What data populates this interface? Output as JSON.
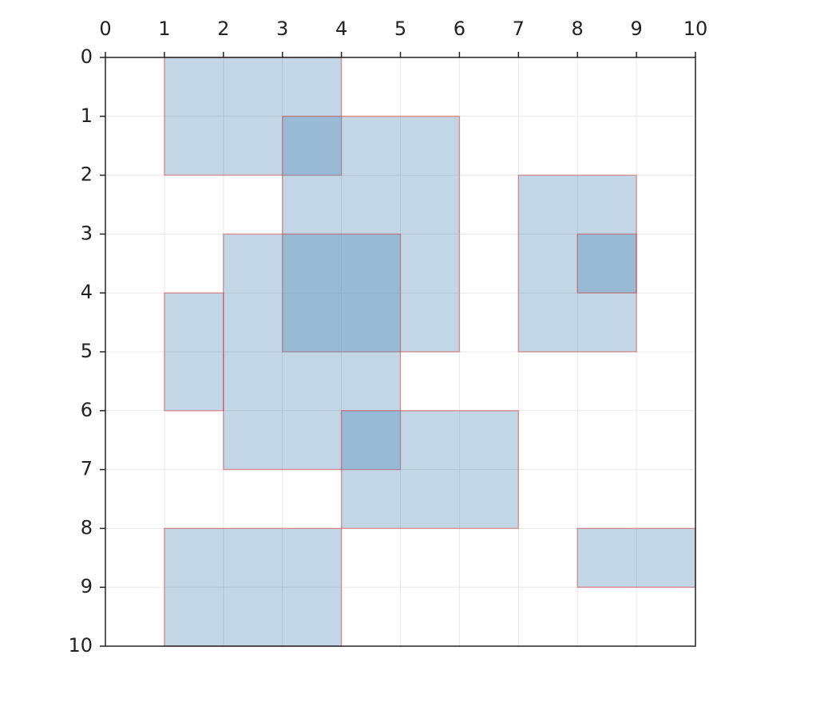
{
  "chart_data": {
    "type": "rectangle",
    "rects": [
      {
        "x": [
          1,
          4
        ],
        "y": [
          0,
          2
        ]
      },
      {
        "x": [
          3,
          6
        ],
        "y": [
          1,
          5
        ]
      },
      {
        "x": [
          7,
          9
        ],
        "y": [
          2,
          5
        ]
      },
      {
        "x": [
          2,
          5
        ],
        "y": [
          3,
          7
        ]
      },
      {
        "x": [
          8,
          9
        ],
        "y": [
          3,
          4
        ]
      },
      {
        "x": [
          1,
          2
        ],
        "y": [
          4,
          6
        ]
      },
      {
        "x": [
          4,
          7
        ],
        "y": [
          6,
          8
        ]
      },
      {
        "x": [
          1,
          4
        ],
        "y": [
          8,
          10
        ]
      },
      {
        "x": [
          8,
          10
        ],
        "y": [
          8,
          9
        ]
      }
    ],
    "color": "#4682b4",
    "edgecolor": "#d62728",
    "xlim": [
      0,
      10
    ],
    "ylim": [
      0,
      10
    ],
    "xticks": [
      0,
      1,
      2,
      3,
      4,
      5,
      6,
      7,
      8,
      9,
      10
    ],
    "yticks": [
      0,
      1,
      2,
      3,
      4,
      5,
      6,
      7,
      8,
      9,
      10
    ],
    "y_inverted": true,
    "xaxis_position": "top",
    "grid": true
  }
}
